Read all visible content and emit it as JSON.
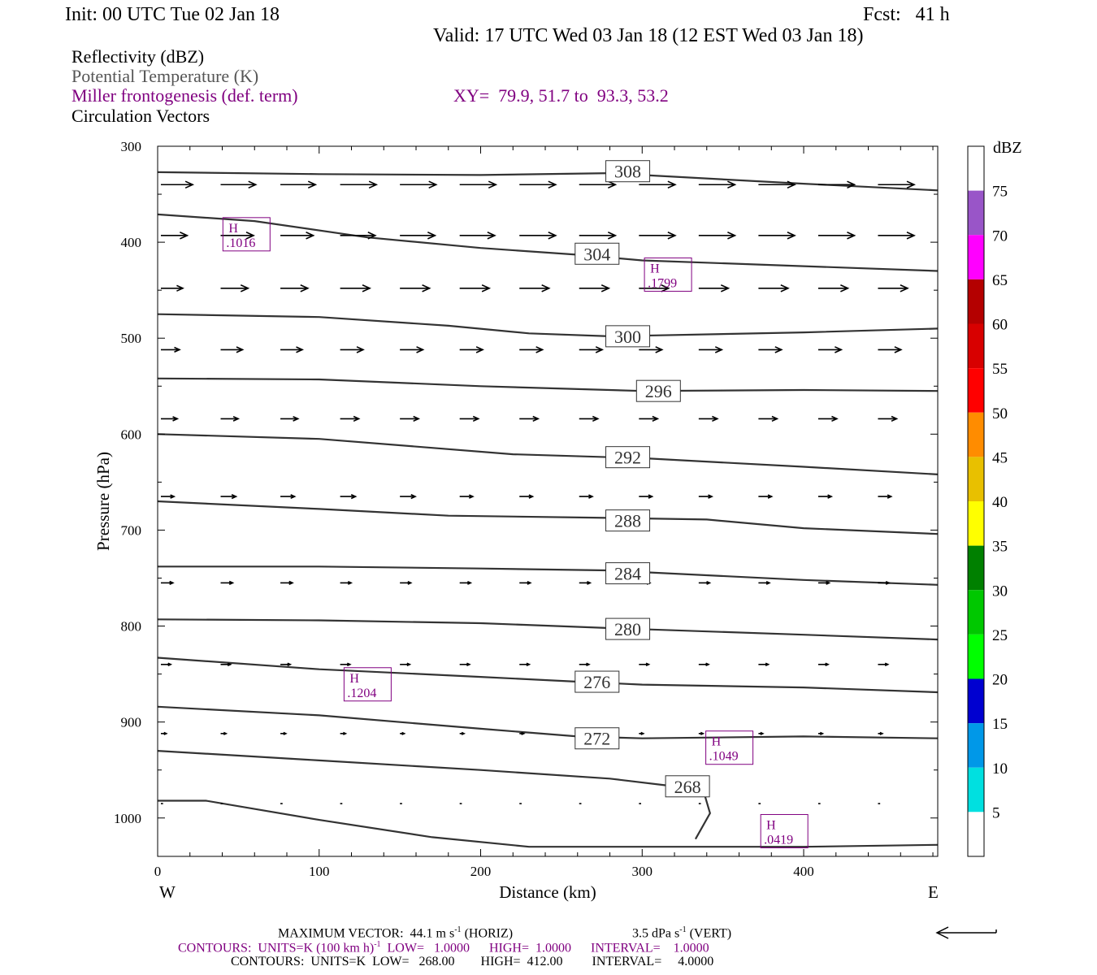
{
  "header": {
    "init": "Init: 00 UTC Tue 02 Jan 18",
    "fcst": "Fcst:   41 h",
    "valid": "Valid: 17 UTC Wed 03 Jan 18 (12 EST Wed 03 Jan 18)"
  },
  "legend": {
    "reflectivity": "Reflectivity (dBZ)",
    "theta": "Potential Temperature (K)",
    "miller": "Miller frontogenesis (def. term)",
    "xy": "XY=  79.9, 51.7 to  93.3, 53.2",
    "vectors": "Circulation Vectors"
  },
  "colorbar": {
    "unit": "dBZ",
    "labels": [
      "5",
      "10",
      "15",
      "20",
      "25",
      "30",
      "35",
      "40",
      "45",
      "50",
      "55",
      "60",
      "65",
      "70",
      "75"
    ],
    "colors": [
      "#00e0e0",
      "#0098e8",
      "#0000d0",
      "#00ff00",
      "#00c800",
      "#008000",
      "#ffff00",
      "#e8c000",
      "#ff8c00",
      "#ff0000",
      "#d80000",
      "#b40000",
      "#ff00ff",
      "#9955c8"
    ]
  },
  "footer": {
    "line1_left": "MAXIMUM VECTOR:  44.1 m s",
    "line1_left_sup": "-1",
    "line1_left_tail": " (HORIZ)",
    "line1_right": "3.5 dPa s",
    "line1_right_sup": "-1",
    "line1_right_tail": " (VERT)",
    "line2_a": "CONTOURS:  UNITS=K (100 km h)",
    "line2_sup": "-1",
    "line2_b": "  LOW=   1.0000      HIGH=  1.0000      INTERVAL=    1.0000",
    "line3": "CONTOURS:  UNITS=K  LOW=   268.00        HIGH=  412.00         INTERVAL=     4.0000"
  },
  "chart_data": {
    "type": "line",
    "xlabel": "Distance (km)",
    "ylabel": "Pressure (hPa)",
    "xlim": [
      0,
      483
    ],
    "ylim": [
      300,
      1040
    ],
    "x_ticks": [
      0,
      100,
      200,
      300,
      400
    ],
    "y_ticks": [
      300,
      400,
      500,
      600,
      700,
      800,
      900,
      1000
    ],
    "x_end_labels": {
      "left": "W",
      "right": "E"
    },
    "isentropes": [
      {
        "label": "308",
        "label_at": [
          278,
          326
        ],
        "points": [
          [
            0,
            327
          ],
          [
            100,
            329
          ],
          [
            200,
            330
          ],
          [
            280,
            328
          ],
          [
            300,
            330
          ],
          [
            400,
            339
          ],
          [
            483,
            346
          ]
        ]
      },
      {
        "label": "304",
        "label_at": [
          259,
          412
        ],
        "points": [
          [
            0,
            371
          ],
          [
            60,
            378
          ],
          [
            130,
            395
          ],
          [
            200,
            406
          ],
          [
            260,
            413
          ],
          [
            300,
            419
          ],
          [
            400,
            425
          ],
          [
            483,
            430
          ]
        ]
      },
      {
        "label": "300",
        "label_at": [
          278,
          498
        ],
        "points": [
          [
            0,
            475
          ],
          [
            100,
            478
          ],
          [
            180,
            487
          ],
          [
            230,
            495
          ],
          [
            280,
            498
          ],
          [
            400,
            494
          ],
          [
            483,
            490
          ]
        ]
      },
      {
        "label": "296",
        "label_at": [
          297,
          555
        ],
        "points": [
          [
            0,
            542
          ],
          [
            100,
            543
          ],
          [
            200,
            550
          ],
          [
            300,
            555
          ],
          [
            400,
            554
          ],
          [
            483,
            555
          ]
        ]
      },
      {
        "label": "292",
        "label_at": [
          278,
          624
        ],
        "points": [
          [
            0,
            600
          ],
          [
            100,
            605
          ],
          [
            220,
            621
          ],
          [
            300,
            625
          ],
          [
            400,
            634
          ],
          [
            483,
            642
          ]
        ]
      },
      {
        "label": "288",
        "label_at": [
          278,
          690
        ],
        "points": [
          [
            0,
            670
          ],
          [
            100,
            678
          ],
          [
            180,
            685
          ],
          [
            270,
            687
          ],
          [
            340,
            689
          ],
          [
            400,
            698
          ],
          [
            483,
            704
          ]
        ]
      },
      {
        "label": "284",
        "label_at": [
          278,
          745
        ],
        "points": [
          [
            0,
            738
          ],
          [
            100,
            738
          ],
          [
            200,
            740
          ],
          [
            278,
            742
          ],
          [
            400,
            752
          ],
          [
            483,
            757
          ]
        ]
      },
      {
        "label": "280",
        "label_at": [
          278,
          803
        ],
        "points": [
          [
            0,
            793
          ],
          [
            100,
            794
          ],
          [
            200,
            797
          ],
          [
            278,
            802
          ],
          [
            400,
            809
          ],
          [
            483,
            814
          ]
        ]
      },
      {
        "label": "276",
        "label_at": [
          259,
          858
        ],
        "points": [
          [
            0,
            833
          ],
          [
            100,
            845
          ],
          [
            200,
            853
          ],
          [
            260,
            858
          ],
          [
            300,
            861
          ],
          [
            400,
            864
          ],
          [
            483,
            869
          ]
        ]
      },
      {
        "label": "272",
        "label_at": [
          259,
          917
        ],
        "points": [
          [
            0,
            884
          ],
          [
            100,
            893
          ],
          [
            200,
            907
          ],
          [
            260,
            915
          ],
          [
            300,
            917
          ],
          [
            400,
            915
          ],
          [
            483,
            917
          ]
        ]
      },
      {
        "label": "268",
        "label_at": [
          315,
          967
        ],
        "points": [
          [
            0,
            930
          ],
          [
            100,
            940
          ],
          [
            200,
            950
          ],
          [
            280,
            959
          ],
          [
            315,
            966
          ],
          [
            338,
            972
          ],
          [
            342,
            995
          ],
          [
            333,
            1022
          ]
        ]
      },
      {
        "label": "",
        "label_at": null,
        "points": [
          [
            0,
            982
          ],
          [
            30,
            982
          ],
          [
            100,
            1002
          ],
          [
            170,
            1020
          ],
          [
            230,
            1030
          ],
          [
            400,
            1030
          ],
          [
            483,
            1028
          ]
        ]
      }
    ],
    "frontogenesis_maxima": [
      {
        "symbol": "H",
        "value": ".1016",
        "x": 55,
        "p": 393
      },
      {
        "symbol": "H",
        "value": ".1799",
        "x": 316,
        "p": 435
      },
      {
        "symbol": "H",
        "value": ".1204",
        "x": 130,
        "p": 862
      },
      {
        "symbol": "H",
        "value": ".1049",
        "x": 354,
        "p": 928
      },
      {
        "symbol": "H",
        "value": ".0419",
        "x": 388,
        "p": 1015
      }
    ],
    "vector_field": {
      "x": [
        2,
        39,
        76,
        113,
        150,
        187,
        224,
        261,
        298,
        335,
        372,
        409,
        446
      ],
      "levels": [
        {
          "p": 340,
          "u": [
            29,
            32,
            32,
            33,
            33,
            33,
            33,
            33,
            33,
            33,
            33,
            33,
            33
          ]
        },
        {
          "p": 393,
          "u": [
            24,
            30,
            30,
            32,
            32,
            32,
            33,
            33,
            33,
            33,
            33,
            33,
            33
          ]
        },
        {
          "p": 448,
          "u": [
            20,
            25,
            25,
            27,
            27,
            27,
            27,
            27,
            27,
            27,
            27,
            27,
            27
          ]
        },
        {
          "p": 512,
          "u": [
            17,
            20,
            20,
            21,
            21,
            21,
            21,
            21,
            21,
            21,
            21,
            21,
            21
          ]
        },
        {
          "p": 584,
          "u": [
            15,
            16,
            16,
            17,
            17,
            17,
            17,
            17,
            17,
            17,
            17,
            17,
            17
          ]
        },
        {
          "p": 665,
          "u": [
            12,
            14,
            13,
            14,
            14,
            12,
            12,
            12,
            12,
            12,
            12,
            12,
            12
          ]
        },
        {
          "p": 755,
          "u": [
            11,
            11,
            11,
            10,
            10,
            10,
            10,
            10,
            10,
            10,
            10,
            10,
            10
          ]
        },
        {
          "p": 840,
          "u": [
            9,
            9,
            9,
            9,
            9,
            9,
            9,
            9,
            9,
            9,
            9,
            9,
            9
          ]
        },
        {
          "p": 912,
          "u": [
            5,
            5,
            5,
            5,
            4,
            4,
            4,
            4,
            4,
            4,
            4,
            4,
            4
          ]
        },
        {
          "p": 985,
          "u": [
            2,
            2,
            2,
            2,
            2,
            2,
            2,
            2,
            2,
            2,
            2,
            2,
            2
          ]
        }
      ]
    }
  }
}
